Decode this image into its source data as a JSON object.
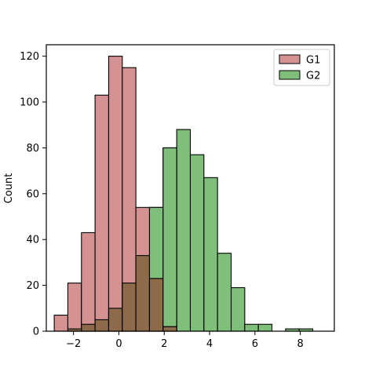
{
  "chart_data": {
    "type": "bar",
    "title": "",
    "xlabel": "",
    "ylabel": "Count",
    "xlim": [
      -3.2,
      9.5
    ],
    "ylim": [
      0,
      125
    ],
    "xticks": [
      -2,
      0,
      2,
      4,
      6,
      8
    ],
    "xtick_labels": [
      "−2",
      "0",
      "2",
      "4",
      "6",
      "8"
    ],
    "yticks": [
      0,
      20,
      40,
      60,
      80,
      100,
      120
    ],
    "ytick_labels": [
      "0",
      "20",
      "40",
      "60",
      "80",
      "100",
      "120"
    ],
    "grid": false,
    "legend": "top-right",
    "overlap_color": "#8c6a4a",
    "series": [
      {
        "name": "G1",
        "color": "#d49292",
        "bins": [
          {
            "x0": -2.85,
            "x1": -2.25,
            "value": 7
          },
          {
            "x0": -2.25,
            "x1": -1.65,
            "value": 21
          },
          {
            "x0": -1.65,
            "x1": -1.05,
            "value": 43
          },
          {
            "x0": -1.05,
            "x1": -0.45,
            "value": 103
          },
          {
            "x0": -0.45,
            "x1": 0.15,
            "value": 120
          },
          {
            "x0": 0.15,
            "x1": 0.75,
            "value": 115
          },
          {
            "x0": 0.75,
            "x1": 1.35,
            "value": 54
          },
          {
            "x0": 1.35,
            "x1": 1.95,
            "value": 23
          },
          {
            "x0": 1.95,
            "x1": 2.55,
            "value": 2
          }
        ]
      },
      {
        "name": "G2",
        "color": "#7fbf7b",
        "bins": [
          {
            "x0": -2.25,
            "x1": -1.65,
            "value": 1
          },
          {
            "x0": -1.65,
            "x1": -1.05,
            "value": 3
          },
          {
            "x0": -1.05,
            "x1": -0.45,
            "value": 5
          },
          {
            "x0": -0.45,
            "x1": 0.15,
            "value": 10
          },
          {
            "x0": 0.15,
            "x1": 0.75,
            "value": 21
          },
          {
            "x0": 0.75,
            "x1": 1.35,
            "value": 33
          },
          {
            "x0": 1.35,
            "x1": 1.95,
            "value": 54
          },
          {
            "x0": 1.95,
            "x1": 2.55,
            "value": 80
          },
          {
            "x0": 2.55,
            "x1": 3.15,
            "value": 88
          },
          {
            "x0": 3.15,
            "x1": 3.75,
            "value": 77
          },
          {
            "x0": 3.75,
            "x1": 4.35,
            "value": 67
          },
          {
            "x0": 4.35,
            "x1": 4.95,
            "value": 34
          },
          {
            "x0": 4.95,
            "x1": 5.55,
            "value": 19
          },
          {
            "x0": 5.55,
            "x1": 6.15,
            "value": 3
          },
          {
            "x0": 6.15,
            "x1": 6.75,
            "value": 3
          },
          {
            "x0": 6.75,
            "x1": 7.35,
            "value": 0
          },
          {
            "x0": 7.35,
            "x1": 7.95,
            "value": 1
          },
          {
            "x0": 7.95,
            "x1": 8.55,
            "value": 1
          }
        ]
      }
    ]
  }
}
